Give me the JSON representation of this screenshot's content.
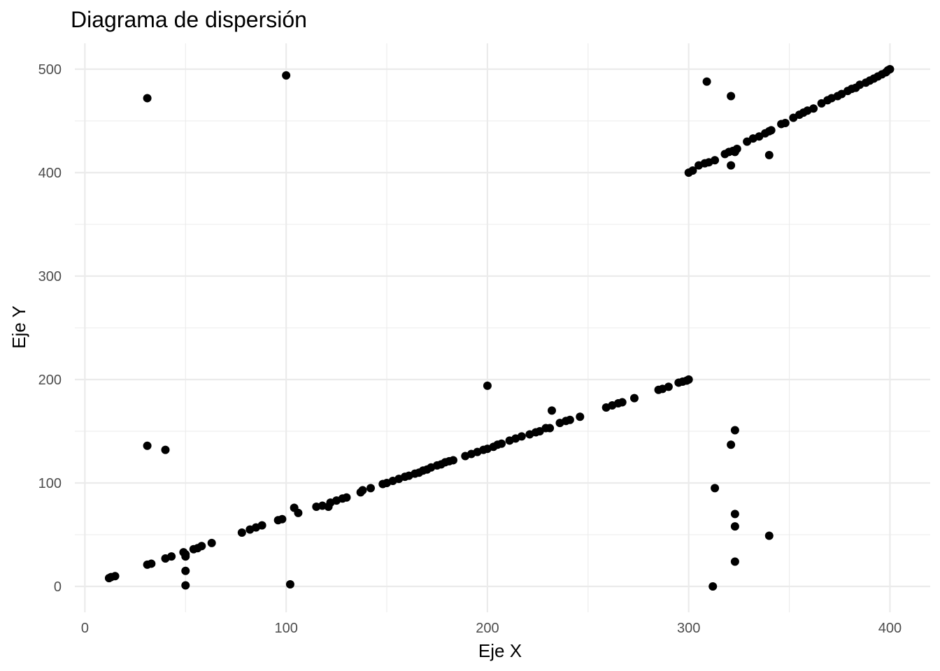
{
  "chart_data": {
    "type": "scatter",
    "title": "Diagrama de dispersión",
    "xlabel": "Eje X",
    "ylabel": "Eje Y",
    "xlim": [
      -5,
      420
    ],
    "ylim": [
      -25,
      525
    ],
    "x_ticks": [
      0,
      100,
      200,
      300,
      400
    ],
    "y_ticks": [
      0,
      100,
      200,
      300,
      400,
      500
    ],
    "x_minor_ticks": [
      50,
      150,
      250,
      350
    ],
    "y_minor_ticks": [
      50,
      150,
      250,
      350,
      450
    ],
    "grid": true,
    "point_color": "#000000",
    "points": [
      [
        12,
        8
      ],
      [
        13,
        9
      ],
      [
        15,
        10
      ],
      [
        31,
        21
      ],
      [
        33,
        22
      ],
      [
        40,
        27
      ],
      [
        43,
        29
      ],
      [
        49,
        33
      ],
      [
        50,
        31
      ],
      [
        50,
        29
      ],
      [
        50,
        15
      ],
      [
        50,
        1
      ],
      [
        54,
        36
      ],
      [
        56,
        37
      ],
      [
        58,
        39
      ],
      [
        63,
        42
      ],
      [
        78,
        52
      ],
      [
        82,
        55
      ],
      [
        85,
        57
      ],
      [
        88,
        59
      ],
      [
        96,
        64
      ],
      [
        98,
        65
      ],
      [
        102,
        2
      ],
      [
        104,
        76
      ],
      [
        106,
        71
      ],
      [
        115,
        77
      ],
      [
        118,
        78
      ],
      [
        121,
        77
      ],
      [
        122,
        81
      ],
      [
        125,
        83
      ],
      [
        128,
        85
      ],
      [
        130,
        86
      ],
      [
        137,
        91
      ],
      [
        138,
        93
      ],
      [
        142,
        95
      ],
      [
        148,
        99
      ],
      [
        150,
        100
      ],
      [
        153,
        102
      ],
      [
        156,
        104
      ],
      [
        159,
        106
      ],
      [
        161,
        107
      ],
      [
        164,
        109
      ],
      [
        166,
        110
      ],
      [
        168,
        112
      ],
      [
        170,
        113
      ],
      [
        172,
        115
      ],
      [
        175,
        117
      ],
      [
        177,
        118
      ],
      [
        179,
        120
      ],
      [
        181,
        121
      ],
      [
        183,
        122
      ],
      [
        189,
        126
      ],
      [
        192,
        128
      ],
      [
        195,
        130
      ],
      [
        198,
        132
      ],
      [
        200,
        133
      ],
      [
        203,
        135
      ],
      [
        205,
        137
      ],
      [
        207,
        138
      ],
      [
        211,
        141
      ],
      [
        214,
        143
      ],
      [
        217,
        145
      ],
      [
        221,
        147
      ],
      [
        224,
        149
      ],
      [
        226,
        150
      ],
      [
        229,
        153
      ],
      [
        231,
        153
      ],
      [
        236,
        158
      ],
      [
        239,
        160
      ],
      [
        241,
        161
      ],
      [
        246,
        164
      ],
      [
        259,
        173
      ],
      [
        262,
        175
      ],
      [
        265,
        177
      ],
      [
        267,
        178
      ],
      [
        273,
        182
      ],
      [
        285,
        190
      ],
      [
        287,
        191
      ],
      [
        290,
        193
      ],
      [
        295,
        197
      ],
      [
        297,
        198
      ],
      [
        299,
        199
      ],
      [
        300,
        200
      ],
      [
        31,
        472
      ],
      [
        100,
        494
      ],
      [
        31,
        136
      ],
      [
        40,
        132
      ],
      [
        200,
        194
      ],
      [
        232,
        170
      ],
      [
        300,
        400
      ],
      [
        302,
        402
      ],
      [
        305,
        407
      ],
      [
        308,
        409
      ],
      [
        310,
        410
      ],
      [
        313,
        412
      ],
      [
        318,
        418
      ],
      [
        320,
        420
      ],
      [
        322,
        421
      ],
      [
        324,
        423
      ],
      [
        329,
        430
      ],
      [
        332,
        433
      ],
      [
        335,
        435
      ],
      [
        338,
        438
      ],
      [
        340,
        440
      ],
      [
        341,
        441
      ],
      [
        346,
        447
      ],
      [
        348,
        448
      ],
      [
        352,
        453
      ],
      [
        355,
        456
      ],
      [
        357,
        458
      ],
      [
        359,
        460
      ],
      [
        362,
        462
      ],
      [
        366,
        467
      ],
      [
        369,
        470
      ],
      [
        371,
        472
      ],
      [
        374,
        474
      ],
      [
        376,
        476
      ],
      [
        379,
        479
      ],
      [
        381,
        481
      ],
      [
        383,
        482
      ],
      [
        385,
        485
      ],
      [
        388,
        487
      ],
      [
        390,
        489
      ],
      [
        392,
        491
      ],
      [
        394,
        493
      ],
      [
        396,
        495
      ],
      [
        398,
        497
      ],
      [
        399,
        499
      ],
      [
        400,
        500
      ],
      [
        309,
        488
      ],
      [
        321,
        474
      ],
      [
        321,
        407
      ],
      [
        323,
        420
      ],
      [
        340,
        417
      ],
      [
        323,
        151
      ],
      [
        321,
        137
      ],
      [
        313,
        95
      ],
      [
        323,
        70
      ],
      [
        323,
        58
      ],
      [
        340,
        49
      ],
      [
        323,
        24
      ],
      [
        312,
        0
      ]
    ]
  }
}
